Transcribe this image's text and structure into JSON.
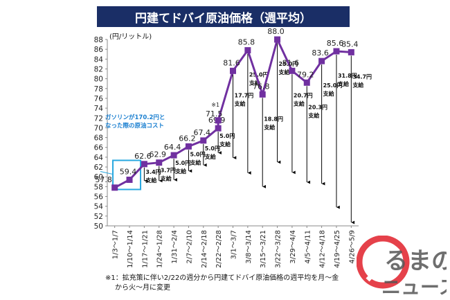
{
  "chart_data": {
    "type": "line",
    "title": "円建てドバイ原油価格（週平均）",
    "ylabel": "(円/リットル)",
    "ylim": [
      50,
      88
    ],
    "yticks": [
      50,
      52,
      54,
      56,
      58,
      60,
      62,
      64,
      66,
      68,
      70,
      72,
      74,
      76,
      78,
      80,
      82,
      84,
      86,
      88
    ],
    "categories": [
      "1/3～1/7",
      "1/10～1/14",
      "1/17～1/21",
      "1/24～1/28",
      "1/31～2/4",
      "2/7～2/10",
      "2/14～2/18",
      "2/22～2/28",
      "3/1～3/7",
      "3/8～3/14",
      "3/15～3/21",
      "3/22～3/28",
      "3/29～4/4",
      "4/5～4/11",
      "4/12～4/18",
      "4/19～4/25",
      "4/26～5/9"
    ],
    "values": [
      57.8,
      59.4,
      62.6,
      62.9,
      64.4,
      66.2,
      67.4,
      69.9,
      81.6,
      85.8,
      76.8,
      88.0,
      81.6,
      79.2,
      83.6,
      85.6,
      85.4
    ],
    "labels": [
      "57.8",
      "59.4",
      "62.6",
      "62.9",
      "64.4",
      "66.2",
      "67.4",
      "69.9",
      "81.6",
      "85.8",
      "76.8",
      "88.0",
      "81.6",
      "79.2",
      "83.6",
      "85.6",
      "85.4"
    ],
    "extra_point": {
      "x_index": 7,
      "value": 71.5,
      "label": "71.5",
      "note": "※1"
    },
    "subsidies": [
      {
        "x_index": 2,
        "top": 62.6,
        "bottom": 59.2,
        "text": "3.4円\n支給"
      },
      {
        "x_index": 3,
        "top": 62.9,
        "bottom": 59.2,
        "text": "3.7円\n支給"
      },
      {
        "x_index": 4,
        "top": 64.4,
        "bottom": 59.4,
        "text": "5.0円\n支給"
      },
      {
        "x_index": 5,
        "top": 66.2,
        "bottom": 61.2,
        "text": "5.0円\n支給"
      },
      {
        "x_index": 6,
        "top": 67.4,
        "bottom": 62.4,
        "text": "5.0円\n支給"
      },
      {
        "x_index": 7,
        "top": 69.9,
        "bottom": 64.9,
        "text": "5.0円\n支給"
      },
      {
        "x_index": 8,
        "top": 81.6,
        "bottom": 63.9,
        "text": "17.7円\n支給"
      },
      {
        "x_index": 9,
        "top": 85.8,
        "bottom": 60.8,
        "text": "25.0円\n支給"
      },
      {
        "x_index": 10,
        "top": 76.8,
        "bottom": 58.0,
        "text": "18.8円\n支給"
      },
      {
        "x_index": 11,
        "top": 88.0,
        "bottom": 63.0,
        "text": "25.0円\n支給"
      },
      {
        "x_index": 12,
        "top": 81.6,
        "bottom": 60.9,
        "text": "20.7円\n支給"
      },
      {
        "x_index": 13,
        "top": 79.2,
        "bottom": 58.9,
        "text": "20.3円\n支給"
      },
      {
        "x_index": 14,
        "top": 83.6,
        "bottom": 58.6,
        "text": "25.0円\n支給"
      },
      {
        "x_index": 15,
        "top": 85.6,
        "bottom": 53.8,
        "text": "31.8円\n支給"
      },
      {
        "x_index": 16,
        "top": 85.4,
        "bottom": 50.7,
        "text": "34.7円\n支給"
      }
    ],
    "line_color": "#7030a0",
    "marker_color": "#7030a0",
    "highlight_color": "#29a8e0",
    "grid": false,
    "legend": "none"
  },
  "callout": {
    "text": "ガソリンが170.2円と\nなった際の原油コスト"
  },
  "footnote": {
    "line1": "※1：拡充策に伴い2/22の週分から円建てドバイ原油価格の週平均を月～金",
    "line2": "から火～月に変更"
  },
  "logo": {
    "text1": "るまの",
    "text2": "ニュース"
  },
  "colors": {
    "title_bg": "#1a2e66",
    "axis": "#888888",
    "logo_red": "#e0202a"
  }
}
